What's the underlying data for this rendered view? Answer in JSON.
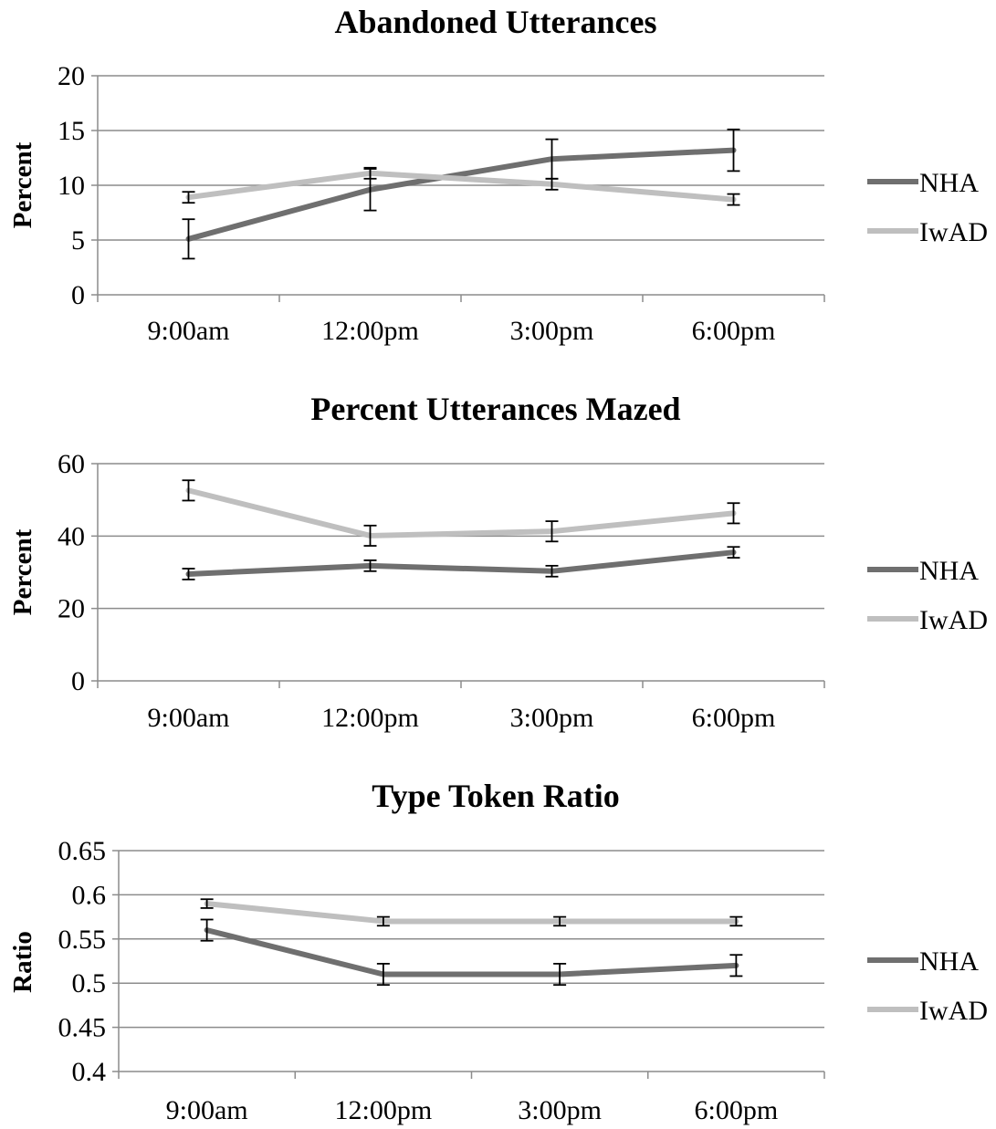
{
  "chart_data": [
    {
      "type": "line",
      "title": "Abandoned Utterances",
      "xlabel": "",
      "ylabel": "Percent",
      "categories": [
        "9:00am",
        "12:00pm",
        "3:00pm",
        "6:00pm"
      ],
      "ylim": [
        0,
        20
      ],
      "yticks": [
        "0",
        "5",
        "10",
        "15",
        "20"
      ],
      "grid": true,
      "legend": "right",
      "series": [
        {
          "name": "NHA",
          "color": "#6f6f6f",
          "values": [
            5.1,
            9.6,
            12.4,
            13.2
          ],
          "error": [
            1.8,
            1.9,
            1.8,
            1.9
          ]
        },
        {
          "name": "IwAD",
          "color": "#bfbfbf",
          "values": [
            8.9,
            11.1,
            10.1,
            8.7
          ],
          "error": [
            0.5,
            0.5,
            0.5,
            0.5
          ]
        }
      ]
    },
    {
      "type": "line",
      "title": "Percent Utterances Mazed",
      "xlabel": "",
      "ylabel": "Percent",
      "categories": [
        "9:00am",
        "12:00pm",
        "3:00pm",
        "6:00pm"
      ],
      "ylim": [
        0,
        60
      ],
      "yticks": [
        "0",
        "20",
        "40",
        "60"
      ],
      "grid": true,
      "legend": "right",
      "series": [
        {
          "name": "NHA",
          "color": "#6f6f6f",
          "values": [
            29.5,
            31.8,
            30.3,
            35.5
          ],
          "error": [
            1.5,
            1.5,
            1.5,
            1.5
          ]
        },
        {
          "name": "IwAD",
          "color": "#bfbfbf",
          "values": [
            52.6,
            40.1,
            41.3,
            46.3
          ],
          "error": [
            2.8,
            2.8,
            2.8,
            2.8
          ]
        }
      ]
    },
    {
      "type": "line",
      "title": "Type Token Ratio",
      "xlabel": "",
      "ylabel": "Ratio",
      "categories": [
        "9:00am",
        "12:00pm",
        "3:00pm",
        "6:00pm"
      ],
      "ylim": [
        0.4,
        0.65
      ],
      "yticks": [
        "0.4",
        "0.45",
        "0.5",
        "0.55",
        "0.6",
        "0.65"
      ],
      "grid": true,
      "legend": "right",
      "series": [
        {
          "name": "NHA",
          "color": "#6f6f6f",
          "values": [
            0.56,
            0.51,
            0.51,
            0.52
          ],
          "error": [
            0.012,
            0.012,
            0.012,
            0.012
          ]
        },
        {
          "name": "IwAD",
          "color": "#bfbfbf",
          "values": [
            0.59,
            0.57,
            0.57,
            0.57
          ],
          "error": [
            0.005,
            0.005,
            0.005,
            0.005
          ]
        }
      ]
    }
  ]
}
